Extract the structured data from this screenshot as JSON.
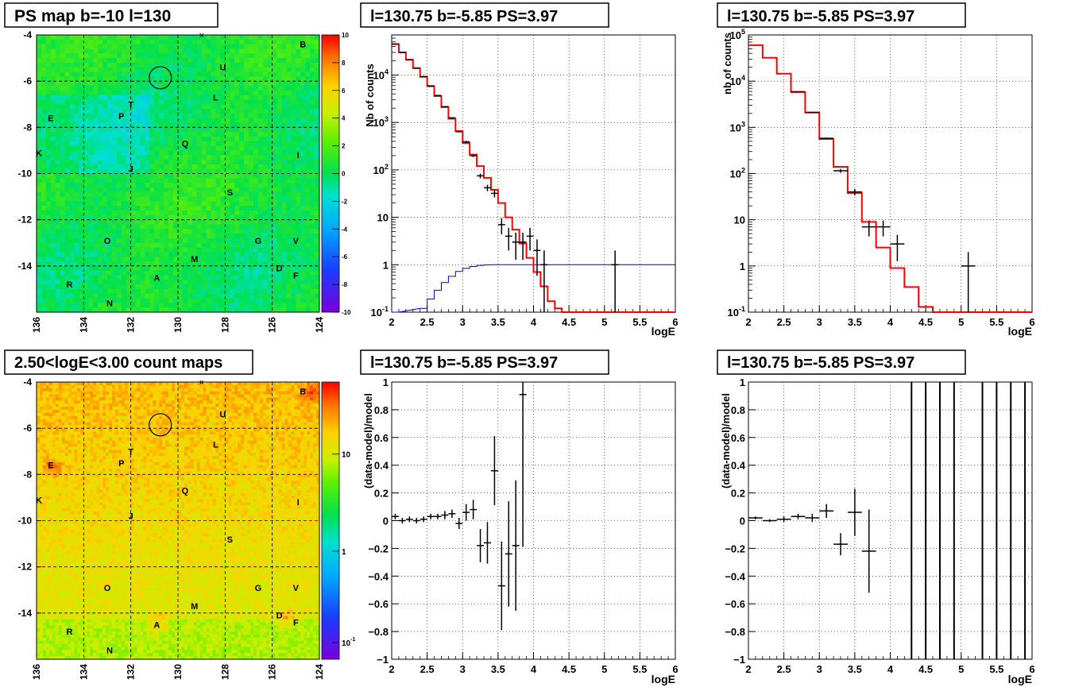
{
  "colors": {
    "red_model": "#ff0000",
    "blue_model": "#0000cc",
    "data_points": "#000000",
    "grid": "#000000"
  },
  "panels": {
    "ps_map": {
      "title": "PS map b=-10 l=130",
      "colorbar_ticks": [
        "10",
        "8",
        "6",
        "4",
        "2",
        "0",
        "-2",
        "-4",
        "-6",
        "-8",
        "-10"
      ],
      "y_ticks": [
        "-4",
        "-6",
        "-8",
        "-10",
        "-12",
        "-14"
      ],
      "x_ticks": [
        "136",
        "134",
        "132",
        "130",
        "128",
        "126",
        "124"
      ],
      "sources": [
        "B",
        "U",
        "L",
        "T",
        "E",
        "P",
        "Q",
        "K",
        "I",
        "J",
        "S",
        "O",
        "G",
        "V",
        "M",
        "D",
        "F",
        "A",
        "R",
        "N"
      ]
    },
    "count_map": {
      "title": "2.50<logE<3.00 count maps",
      "colorbar_ticks": [
        "10",
        "1",
        "10^-1"
      ],
      "y_ticks": [
        "-4",
        "-6",
        "-8",
        "-10",
        "-12",
        "-14"
      ],
      "x_ticks": [
        "136",
        "134",
        "132",
        "130",
        "128",
        "126",
        "124"
      ],
      "sources": [
        "B",
        "U",
        "L",
        "T",
        "E",
        "P",
        "Q",
        "K",
        "I",
        "J",
        "S",
        "O",
        "G",
        "V",
        "M",
        "D",
        "F",
        "A",
        "R",
        "N"
      ]
    },
    "spectrum_1": {
      "title": "l=130.75 b=-5.85 PS=3.97",
      "ylabel": "Nb of counts",
      "xlabel": "logE"
    },
    "spectrum_2": {
      "title": "l=130.75 b=-5.85 PS=3.97",
      "ylabel": "nb of counts",
      "xlabel": "logE"
    },
    "residual_1": {
      "title": "l=130.75 b=-5.85 PS=3.97",
      "ylabel": "(data-model)/model",
      "xlabel": "logE"
    },
    "residual_2": {
      "title": "l=130.75 b=-5.85 PS=3.97",
      "ylabel": "(data-model)/model",
      "xlabel": "logE"
    }
  },
  "chart_data": [
    {
      "type": "heatmap",
      "title": "PS map b=-10 l=130",
      "xlim": [
        136,
        124
      ],
      "ylim": [
        -16,
        -4
      ],
      "zlim": [
        -10,
        10
      ],
      "colorbar": [
        "10",
        "8",
        "6",
        "4",
        "2",
        "0",
        "-2",
        "-4",
        "-6",
        "-8",
        "-10"
      ],
      "labels": [
        {
          "text": "B",
          "l": 124.7,
          "b": -4.4
        },
        {
          "text": "U",
          "l": 128.1,
          "b": -5.4
        },
        {
          "text": "L",
          "l": 128.4,
          "b": -6.7
        },
        {
          "text": "T",
          "l": 132.0,
          "b": -7.0
        },
        {
          "text": "E",
          "l": 135.4,
          "b": -7.6
        },
        {
          "text": "P",
          "l": 132.4,
          "b": -7.5
        },
        {
          "text": "Q",
          "l": 129.7,
          "b": -8.7
        },
        {
          "text": "K",
          "l": 135.9,
          "b": -9.1
        },
        {
          "text": "I",
          "l": 124.9,
          "b": -9.2
        },
        {
          "text": "J",
          "l": 132.0,
          "b": -9.8
        },
        {
          "text": "S",
          "l": 127.8,
          "b": -10.8
        },
        {
          "text": "O",
          "l": 133.0,
          "b": -12.9
        },
        {
          "text": "G",
          "l": 126.6,
          "b": -12.9
        },
        {
          "text": "V",
          "l": 125.0,
          "b": -12.9
        },
        {
          "text": "M",
          "l": 129.3,
          "b": -13.7
        },
        {
          "text": "D",
          "l": 125.7,
          "b": -14.1
        },
        {
          "text": "F",
          "l": 125.0,
          "b": -14.4
        },
        {
          "text": "A",
          "l": 130.9,
          "b": -14.5
        },
        {
          "text": "R",
          "l": 134.6,
          "b": -14.8
        },
        {
          "text": "N",
          "l": 132.9,
          "b": -15.6
        }
      ],
      "circle": {
        "l": 130.75,
        "b": -5.85
      },
      "cross": {
        "l": 129.0,
        "b": -4.0
      }
    },
    {
      "type": "heatmap",
      "title": "2.50<logE<3.00 count maps",
      "xlim": [
        136,
        124
      ],
      "ylim": [
        -16,
        -4
      ],
      "zscale": "log",
      "colorbar": [
        "10",
        "1",
        "10^-1"
      ],
      "labels": [
        {
          "text": "B",
          "l": 124.7,
          "b": -4.4
        },
        {
          "text": "U",
          "l": 128.1,
          "b": -5.4
        },
        {
          "text": "L",
          "l": 128.4,
          "b": -6.7
        },
        {
          "text": "T",
          "l": 132.0,
          "b": -7.0
        },
        {
          "text": "E",
          "l": 135.4,
          "b": -7.6
        },
        {
          "text": "P",
          "l": 132.4,
          "b": -7.5
        },
        {
          "text": "Q",
          "l": 129.7,
          "b": -8.7
        },
        {
          "text": "K",
          "l": 135.9,
          "b": -9.1
        },
        {
          "text": "I",
          "l": 124.9,
          "b": -9.2
        },
        {
          "text": "J",
          "l": 132.0,
          "b": -9.8
        },
        {
          "text": "S",
          "l": 127.8,
          "b": -10.8
        },
        {
          "text": "O",
          "l": 133.0,
          "b": -12.9
        },
        {
          "text": "G",
          "l": 126.6,
          "b": -12.9
        },
        {
          "text": "V",
          "l": 125.0,
          "b": -12.9
        },
        {
          "text": "M",
          "l": 129.3,
          "b": -13.7
        },
        {
          "text": "D",
          "l": 125.7,
          "b": -14.1
        },
        {
          "text": "F",
          "l": 125.0,
          "b": -14.4
        },
        {
          "text": "A",
          "l": 130.9,
          "b": -14.5
        },
        {
          "text": "R",
          "l": 134.6,
          "b": -14.8
        },
        {
          "text": "N",
          "l": 132.9,
          "b": -15.6
        }
      ],
      "circle": {
        "l": 130.75,
        "b": -5.85
      },
      "cross": {
        "l": 129.0,
        "b": -4.0
      },
      "hotspots": [
        {
          "l": 124.4,
          "b": -4.4
        },
        {
          "l": 130.9,
          "b": -14.4
        },
        {
          "l": 135.4,
          "b": -7.6
        },
        {
          "l": 125.5,
          "b": -14.2
        }
      ]
    },
    {
      "type": "line",
      "title": "l=130.75 b=-5.85 PS=3.97",
      "xlabel": "logE",
      "ylabel": "Nb of counts",
      "xlim": [
        2,
        6
      ],
      "ylim": [
        0.1,
        70000
      ],
      "yscale": "log",
      "x_ticks": [
        "2",
        "2.5",
        "3",
        "3.5",
        "4",
        "4.5",
        "5",
        "5.5",
        "6"
      ],
      "y_ticks": [
        {
          "v": 0.1,
          "t": "10^-1"
        },
        {
          "v": 1,
          "t": "1"
        },
        {
          "v": 10,
          "t": "10"
        },
        {
          "v": 100,
          "t": "10^2"
        },
        {
          "v": 1000,
          "t": "10^3"
        },
        {
          "v": 10000,
          "t": "10^4"
        }
      ],
      "step_width": 0.1,
      "model_red": [
        {
          "x": 2.0,
          "y": 45000
        },
        {
          "x": 2.1,
          "y": 30000
        },
        {
          "x": 2.2,
          "y": 21000
        },
        {
          "x": 2.3,
          "y": 14000
        },
        {
          "x": 2.4,
          "y": 9200
        },
        {
          "x": 2.5,
          "y": 5800
        },
        {
          "x": 2.6,
          "y": 3600
        },
        {
          "x": 2.7,
          "y": 2100
        },
        {
          "x": 2.8,
          "y": 1200
        },
        {
          "x": 2.9,
          "y": 660
        },
        {
          "x": 3.0,
          "y": 370
        },
        {
          "x": 3.1,
          "y": 210
        },
        {
          "x": 3.2,
          "y": 120
        },
        {
          "x": 3.3,
          "y": 68
        },
        {
          "x": 3.4,
          "y": 38
        },
        {
          "x": 3.5,
          "y": 20
        },
        {
          "x": 3.6,
          "y": 10
        },
        {
          "x": 3.7,
          "y": 5.5
        },
        {
          "x": 3.8,
          "y": 2.8
        },
        {
          "x": 3.9,
          "y": 1.4
        },
        {
          "x": 4.0,
          "y": 0.7
        },
        {
          "x": 4.1,
          "y": 0.35
        },
        {
          "x": 4.2,
          "y": 0.17
        },
        {
          "x": 4.3,
          "y": 0.12
        },
        {
          "x": 4.4,
          "y": 0.1
        },
        {
          "x": 5.9,
          "y": 0.1
        }
      ],
      "model_blue": [
        {
          "x": 2.0,
          "y": 0.1
        },
        {
          "x": 2.4,
          "y": 0.12
        },
        {
          "x": 2.5,
          "y": 0.19
        },
        {
          "x": 2.6,
          "y": 0.29
        },
        {
          "x": 2.7,
          "y": 0.42
        },
        {
          "x": 2.8,
          "y": 0.57
        },
        {
          "x": 2.9,
          "y": 0.72
        },
        {
          "x": 3.0,
          "y": 0.84
        },
        {
          "x": 3.1,
          "y": 0.92
        },
        {
          "x": 3.2,
          "y": 0.97
        },
        {
          "x": 3.3,
          "y": 0.99
        },
        {
          "x": 3.4,
          "y": 1.0
        },
        {
          "x": 5.9,
          "y": 1.0
        }
      ],
      "points": [
        {
          "x": 2.05,
          "y": 45000
        },
        {
          "x": 2.15,
          "y": 30000
        },
        {
          "x": 2.25,
          "y": 21000
        },
        {
          "x": 2.35,
          "y": 14000
        },
        {
          "x": 2.45,
          "y": 9200
        },
        {
          "x": 2.55,
          "y": 5900
        },
        {
          "x": 2.65,
          "y": 3700
        },
        {
          "x": 2.75,
          "y": 2150
        },
        {
          "x": 2.85,
          "y": 1250
        },
        {
          "x": 2.95,
          "y": 640
        },
        {
          "x": 3.05,
          "y": 390
        },
        {
          "x": 3.15,
          "y": 200
        },
        {
          "x": 3.25,
          "y": 75
        },
        {
          "x": 3.35,
          "y": 42
        },
        {
          "x": 3.45,
          "y": 32
        },
        {
          "x": 3.55,
          "y": 7
        },
        {
          "x": 3.65,
          "y": 4
        },
        {
          "x": 3.75,
          "y": 3
        },
        {
          "x": 3.85,
          "y": 3
        },
        {
          "x": 3.95,
          "y": 4
        },
        {
          "x": 4.05,
          "y": 2
        },
        {
          "x": 4.15,
          "y": 1
        },
        {
          "x": 5.15,
          "y": 1
        }
      ]
    },
    {
      "type": "line",
      "title": "l=130.75 b=-5.85 PS=3.97",
      "xlabel": "logE",
      "ylabel": "nb of counts",
      "xlim": [
        2,
        6
      ],
      "ylim": [
        0.1,
        100000
      ],
      "yscale": "log",
      "x_ticks": [
        "2",
        "2.5",
        "3",
        "3.5",
        "4",
        "4.5",
        "5",
        "5.5",
        "6"
      ],
      "y_ticks": [
        {
          "v": 0.1,
          "t": "10^-1"
        },
        {
          "v": 1,
          "t": "1"
        },
        {
          "v": 10,
          "t": "10"
        },
        {
          "v": 100,
          "t": "10^2"
        },
        {
          "v": 1000,
          "t": "10^3"
        },
        {
          "v": 10000,
          "t": "10^4"
        },
        {
          "v": 100000,
          "t": "10^5"
        }
      ],
      "step_width": 0.2,
      "model_red": [
        {
          "x": 2.0,
          "y": 60000
        },
        {
          "x": 2.2,
          "y": 32000
        },
        {
          "x": 2.4,
          "y": 14500
        },
        {
          "x": 2.6,
          "y": 5800
        },
        {
          "x": 2.8,
          "y": 2100
        },
        {
          "x": 3.0,
          "y": 560
        },
        {
          "x": 3.2,
          "y": 140
        },
        {
          "x": 3.4,
          "y": 38
        },
        {
          "x": 3.6,
          "y": 9
        },
        {
          "x": 3.8,
          "y": 2.5
        },
        {
          "x": 4.0,
          "y": 0.9
        },
        {
          "x": 4.2,
          "y": 0.35
        },
        {
          "x": 4.4,
          "y": 0.13
        },
        {
          "x": 4.6,
          "y": 0.1
        },
        {
          "x": 5.9,
          "y": 0.1
        }
      ],
      "points": [
        {
          "x": 2.7,
          "y": 5900
        },
        {
          "x": 2.9,
          "y": 2100
        },
        {
          "x": 3.1,
          "y": 580
        },
        {
          "x": 3.3,
          "y": 115
        },
        {
          "x": 3.5,
          "y": 40
        },
        {
          "x": 3.7,
          "y": 7
        },
        {
          "x": 3.9,
          "y": 7
        },
        {
          "x": 4.1,
          "y": 3
        },
        {
          "x": 5.1,
          "y": 1
        }
      ]
    },
    {
      "type": "scatter",
      "title": "l=130.75 b=-5.85 PS=3.97",
      "xlabel": "logE",
      "ylabel": "(data-model)/model",
      "xlim": [
        2,
        6
      ],
      "ylim": [
        -1,
        1
      ],
      "x_ticks": [
        "2",
        "2.5",
        "3",
        "3.5",
        "4",
        "4.5",
        "5",
        "5.5",
        "6"
      ],
      "y_ticks": [
        "-1",
        "-0.8",
        "-0.6",
        "-0.4",
        "-0.2",
        "0",
        "0.2",
        "0.4",
        "0.6",
        "0.8",
        "1"
      ],
      "points": [
        {
          "x": 2.05,
          "y": 0.03,
          "e": 0.02
        },
        {
          "x": 2.15,
          "y": 0.0,
          "e": 0.02
        },
        {
          "x": 2.25,
          "y": 0.01,
          "e": 0.02
        },
        {
          "x": 2.35,
          "y": 0.0,
          "e": 0.02
        },
        {
          "x": 2.45,
          "y": 0.01,
          "e": 0.02
        },
        {
          "x": 2.55,
          "y": 0.03,
          "e": 0.02
        },
        {
          "x": 2.65,
          "y": 0.03,
          "e": 0.02
        },
        {
          "x": 2.75,
          "y": 0.04,
          "e": 0.03
        },
        {
          "x": 2.85,
          "y": 0.05,
          "e": 0.03
        },
        {
          "x": 2.95,
          "y": -0.02,
          "e": 0.04
        },
        {
          "x": 3.05,
          "y": 0.06,
          "e": 0.06
        },
        {
          "x": 3.15,
          "y": 0.08,
          "e": 0.07
        },
        {
          "x": 3.25,
          "y": -0.18,
          "e": 0.12
        },
        {
          "x": 3.35,
          "y": -0.16,
          "e": 0.15
        },
        {
          "x": 3.45,
          "y": 0.36,
          "e": 0.25
        },
        {
          "x": 3.55,
          "y": -0.47,
          "e": 0.32
        },
        {
          "x": 3.65,
          "y": -0.24,
          "e": 0.38
        },
        {
          "x": 3.75,
          "y": -0.18,
          "e": 0.47
        },
        {
          "x": 3.85,
          "y": 0.91,
          "e": 1.1
        }
      ],
      "tall_bars": []
    },
    {
      "type": "scatter",
      "title": "l=130.75 b=-5.85 PS=3.97",
      "xlabel": "logE",
      "ylabel": "(data-model)/model",
      "xlim": [
        2,
        6
      ],
      "ylim": [
        -1,
        1
      ],
      "x_ticks": [
        "2",
        "2.5",
        "3",
        "3.5",
        "4",
        "4.5",
        "5",
        "5.5",
        "6"
      ],
      "y_ticks": [
        "-1",
        "-0.8",
        "-0.6",
        "-0.4",
        "-0.2",
        "0",
        "0.2",
        "0.4",
        "0.6",
        "0.8",
        "1"
      ],
      "points": [
        {
          "x": 2.1,
          "y": 0.02,
          "e": 0.01
        },
        {
          "x": 2.3,
          "y": 0.0,
          "e": 0.01
        },
        {
          "x": 2.5,
          "y": 0.01,
          "e": 0.02
        },
        {
          "x": 2.7,
          "y": 0.03,
          "e": 0.02
        },
        {
          "x": 2.9,
          "y": 0.02,
          "e": 0.03
        },
        {
          "x": 3.1,
          "y": 0.07,
          "e": 0.05
        },
        {
          "x": 3.3,
          "y": -0.17,
          "e": 0.08
        },
        {
          "x": 3.5,
          "y": 0.06,
          "e": 0.17
        },
        {
          "x": 3.7,
          "y": -0.22,
          "e": 0.3
        }
      ],
      "tall_bars": [
        4.3,
        4.5,
        4.7,
        4.9,
        5.3,
        5.5,
        5.7,
        5.9
      ]
    }
  ]
}
